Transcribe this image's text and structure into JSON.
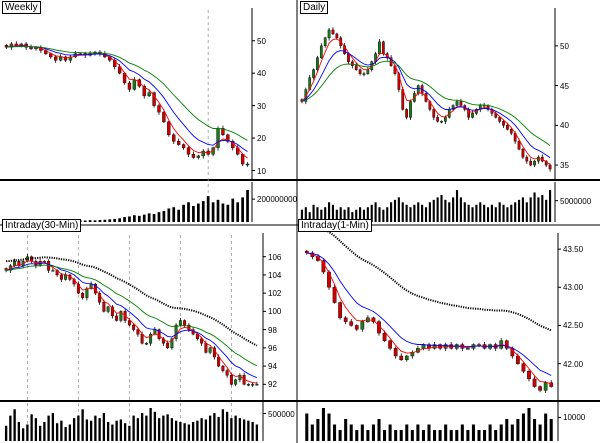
{
  "colors": {
    "up_candle": "#1a7a1a",
    "down_candle": "#cc0000",
    "wick": "#000000",
    "ma_short": "#ff0000",
    "ma_mid": "#0000ff",
    "ma_long": "#008000",
    "ma_dotted": "#000000",
    "volume": "#000000",
    "axis": "#000000",
    "session_divider": "#999999"
  },
  "chart_data": [
    {
      "id": "weekly",
      "type": "candlestick",
      "title": "Weekly",
      "price_ticks": [
        "50",
        "40",
        "30",
        "20",
        "10"
      ],
      "ylim": [
        8,
        57
      ],
      "volume_ticks": [
        "200000000"
      ],
      "volume_max": 280000000,
      "indicators": [
        "MA short (red)",
        "MA mid (blue)",
        "MA long (green)"
      ],
      "session_dividers": [
        41
      ],
      "close": [
        48,
        49,
        48.5,
        49,
        48,
        47.5,
        48,
        47,
        46,
        45,
        44,
        45,
        44,
        45,
        46,
        46,
        45.5,
        46,
        46.5,
        46,
        45,
        44,
        42,
        40,
        37,
        35,
        38,
        36,
        33,
        34,
        30,
        28,
        25,
        21,
        19,
        18,
        17,
        15,
        14,
        14.5,
        16,
        15,
        17,
        23,
        21,
        19,
        17,
        15,
        12,
        12
      ],
      "volume": [
        15,
        12,
        14,
        18,
        13,
        12,
        15,
        16,
        14,
        12,
        11,
        10,
        12,
        14,
        11,
        13,
        12,
        15,
        14,
        16,
        18,
        22,
        25,
        30,
        40,
        45,
        55,
        50,
        60,
        70,
        65,
        80,
        90,
        110,
        120,
        100,
        140,
        160,
        130,
        150,
        170,
        210,
        160,
        180,
        150,
        140,
        190,
        160,
        200,
        260
      ]
    },
    {
      "id": "daily",
      "type": "candlestick",
      "title": "Daily",
      "price_ticks": [
        "50",
        "45",
        "40",
        "35"
      ],
      "ylim": [
        33.5,
        53.5
      ],
      "volume_ticks": [
        "5000000"
      ],
      "volume_max": 7500000,
      "indicators": [
        "MA short (red)",
        "MA mid (blue)",
        "MA long (green)"
      ],
      "close": [
        43,
        44.5,
        46,
        47,
        48.5,
        50,
        51,
        52,
        51.5,
        51,
        50,
        49,
        48,
        47.5,
        47,
        46.5,
        46.5,
        47,
        48,
        49,
        50.5,
        49,
        48.5,
        47.5,
        46.5,
        44.5,
        42,
        41,
        43,
        44,
        45,
        44,
        43,
        42,
        41,
        40.5,
        40.5,
        41,
        42,
        42.5,
        43,
        42.5,
        42,
        41,
        41.5,
        42,
        42.5,
        42.5,
        42,
        41.5,
        41,
        40.5,
        40,
        39.5,
        39,
        38,
        37,
        36,
        35.5,
        35,
        35.5,
        36,
        35.5,
        35,
        34.5
      ],
      "volume": [
        2.5,
        3,
        2,
        3.5,
        3,
        2.5,
        3,
        4,
        3.5,
        2.5,
        3,
        2.5,
        3,
        2,
        2.5,
        3,
        2.5,
        3,
        3.5,
        4,
        3,
        2.5,
        3,
        4,
        4.5,
        5,
        4,
        3.5,
        3,
        3.5,
        4,
        3.5,
        3,
        4,
        4.5,
        5,
        5.5,
        4.5,
        4,
        5,
        6.5,
        5,
        4,
        3.5,
        3,
        3.5,
        4,
        3.5,
        3,
        3.5,
        3,
        4,
        3.5,
        3,
        3.5,
        4,
        4.5,
        5,
        4,
        5,
        6,
        5,
        5.5,
        4.5,
        6.5
      ]
    },
    {
      "id": "intraday30",
      "type": "candlestick",
      "title": "Intraday(30-Min)",
      "price_ticks": [
        "106",
        "104",
        "102",
        "100",
        "98",
        "96",
        "94",
        "92"
      ],
      "ylim": [
        90.5,
        107.5
      ],
      "volume_ticks": [
        "500000"
      ],
      "volume_max": 600000,
      "indicators": [
        "MA short (red)",
        "MA mid (blue)",
        "MA long (green)",
        "MA (dotted black)"
      ],
      "session_dividers": [
        5,
        17,
        29,
        41,
        53
      ],
      "close": [
        104.5,
        105,
        105.5,
        105,
        105.5,
        106,
        105.5,
        105,
        105.5,
        105.5,
        104.5,
        104.5,
        104,
        103.5,
        104,
        103.5,
        103,
        102,
        101.5,
        102.5,
        103,
        102,
        101,
        100,
        100.5,
        99.5,
        99,
        100,
        99,
        98.5,
        98,
        97.5,
        96.5,
        96.5,
        97.5,
        98,
        97,
        96.5,
        96,
        97,
        98.5,
        99,
        98.5,
        98,
        97.5,
        97,
        96.5,
        95.5,
        96,
        95,
        94,
        93.5,
        93,
        92,
        92.5,
        93,
        92,
        92,
        92,
        92
      ],
      "volume": [
        120,
        200,
        250,
        150,
        100,
        130,
        210,
        180,
        120,
        150,
        200,
        220,
        140,
        160,
        110,
        130,
        180,
        200,
        250,
        170,
        160,
        200,
        180,
        220,
        150,
        130,
        160,
        170,
        140,
        120,
        200,
        180,
        220,
        200,
        260,
        230,
        180,
        200,
        210,
        180,
        160,
        150,
        140,
        130,
        150,
        160,
        180,
        170,
        200,
        220,
        190,
        250,
        230,
        180,
        200,
        180,
        170,
        160,
        150,
        130
      ]
    },
    {
      "id": "intraday1",
      "type": "candlestick",
      "title": "Intraday(1-Min)",
      "price_ticks": [
        "43.50",
        "43.00",
        "42.50",
        "42.00"
      ],
      "ylim": [
        41.55,
        43.58
      ],
      "volume_ticks": [
        "10000"
      ],
      "volume_max": 14000,
      "indicators": [
        "MA short (red)",
        "MA mid (blue)",
        "MA (dotted black)"
      ],
      "close": [
        43.45,
        43.4,
        43.35,
        43.2,
        43,
        42.8,
        42.6,
        42.55,
        42.5,
        42.45,
        42.55,
        42.6,
        42.55,
        42.4,
        42.3,
        42.2,
        42.1,
        42.05,
        42.1,
        42.15,
        42.2,
        42.25,
        42.2,
        42.25,
        42.2,
        42.25,
        42.2,
        42.25,
        42.2,
        42.2,
        42.25,
        42.25,
        42.2,
        42.25,
        42.2,
        42.3,
        42.2,
        42.1,
        42,
        41.9,
        41.8,
        41.7,
        41.65,
        41.75,
        41.7
      ],
      "volume": [
        5,
        3,
        4,
        6,
        5,
        3,
        2,
        4,
        3,
        2,
        3,
        2,
        3,
        4,
        2,
        3,
        2,
        2,
        3,
        2,
        3,
        2,
        3,
        2,
        2,
        3,
        2,
        2,
        3,
        2,
        3,
        2,
        2,
        3,
        2,
        3,
        4,
        3,
        4,
        5,
        6,
        4,
        3,
        5,
        4
      ]
    }
  ]
}
